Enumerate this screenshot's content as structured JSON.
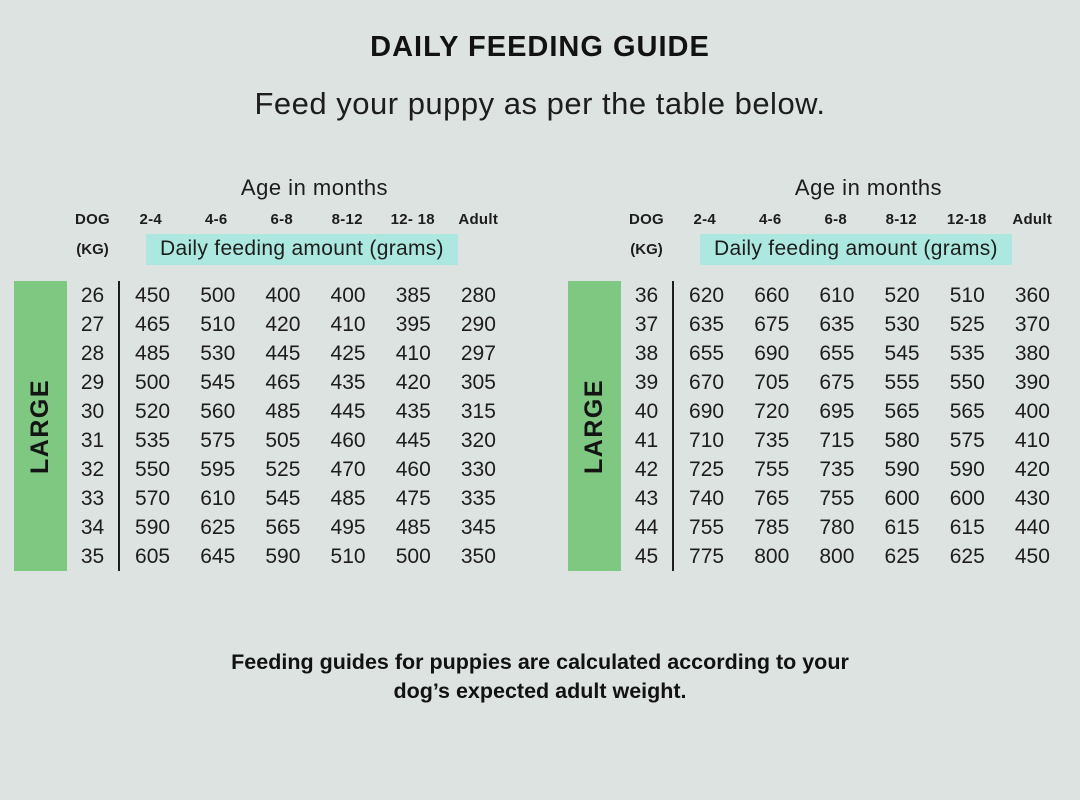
{
  "title": "DAILY FEEDING GUIDE",
  "subtitle": "Feed your puppy as per the table below.",
  "footer": {
    "line1": "Feeding guides for puppies are calculated according to your",
    "line2": "dog’s expected adult weight."
  },
  "colors": {
    "background": "#dce3e1",
    "green_bar": "#7ec881",
    "teal_highlight": "#ace8e0",
    "text": "#1d1d1b"
  },
  "chart_data": [
    {
      "type": "table",
      "title": "Age in months",
      "size_label": "LARGE",
      "dog_label": "DOG",
      "kg_label": "(KG)",
      "amount_label": "Daily feeding amount (grams)",
      "age_columns": [
        "2-4",
        "4-6",
        "6-8",
        "8-12",
        "12- 18",
        "Adult"
      ],
      "rows": [
        {
          "kg": "26",
          "values": [
            450,
            500,
            400,
            400,
            385,
            280
          ]
        },
        {
          "kg": "27",
          "values": [
            465,
            510,
            420,
            410,
            395,
            290
          ]
        },
        {
          "kg": "28",
          "values": [
            485,
            530,
            445,
            425,
            410,
            297
          ]
        },
        {
          "kg": "29",
          "values": [
            500,
            545,
            465,
            435,
            420,
            305
          ]
        },
        {
          "kg": "30",
          "values": [
            520,
            560,
            485,
            445,
            435,
            315
          ]
        },
        {
          "kg": "31",
          "values": [
            535,
            575,
            505,
            460,
            445,
            320
          ]
        },
        {
          "kg": "32",
          "values": [
            550,
            595,
            525,
            470,
            460,
            330
          ]
        },
        {
          "kg": "33",
          "values": [
            570,
            610,
            545,
            485,
            475,
            335
          ]
        },
        {
          "kg": "34",
          "values": [
            590,
            625,
            565,
            495,
            485,
            345
          ]
        },
        {
          "kg": "35",
          "values": [
            605,
            645,
            590,
            510,
            500,
            350
          ]
        }
      ]
    },
    {
      "type": "table",
      "title": "Age in months",
      "size_label": "LARGE",
      "dog_label": "DOG",
      "kg_label": "(KG)",
      "amount_label": "Daily feeding amount (grams)",
      "age_columns": [
        "2-4",
        "4-6",
        "6-8",
        "8-12",
        "12-18",
        "Adult"
      ],
      "rows": [
        {
          "kg": "36",
          "values": [
            620,
            660,
            610,
            520,
            510,
            360
          ]
        },
        {
          "kg": "37",
          "values": [
            635,
            675,
            635,
            530,
            525,
            370
          ]
        },
        {
          "kg": "38",
          "values": [
            655,
            690,
            655,
            545,
            535,
            380
          ]
        },
        {
          "kg": "39",
          "values": [
            670,
            705,
            675,
            555,
            550,
            390
          ]
        },
        {
          "kg": "40",
          "values": [
            690,
            720,
            695,
            565,
            565,
            400
          ]
        },
        {
          "kg": "41",
          "values": [
            710,
            735,
            715,
            580,
            575,
            410
          ]
        },
        {
          "kg": "42",
          "values": [
            725,
            755,
            735,
            590,
            590,
            420
          ]
        },
        {
          "kg": "43",
          "values": [
            740,
            765,
            755,
            600,
            600,
            430
          ]
        },
        {
          "kg": "44",
          "values": [
            755,
            785,
            780,
            615,
            615,
            440
          ]
        },
        {
          "kg": "45",
          "values": [
            775,
            800,
            800,
            625,
            625,
            450
          ]
        }
      ]
    }
  ]
}
